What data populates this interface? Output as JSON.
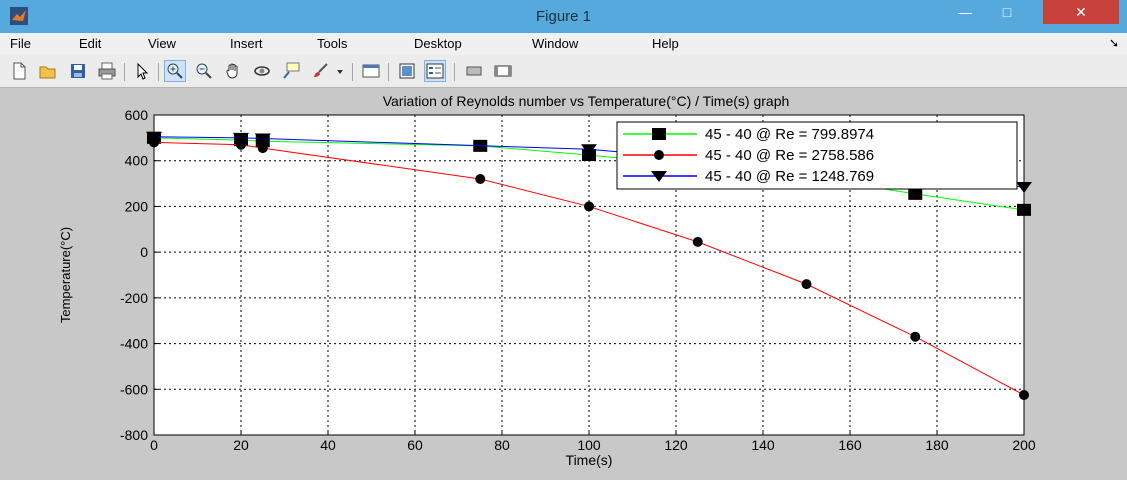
{
  "window": {
    "title": "Figure 1",
    "minimize_symbol": "—",
    "maximize_symbol": "□",
    "close_symbol": "✕"
  },
  "menu": [
    {
      "label": "File"
    },
    {
      "label": "Edit"
    },
    {
      "label": "View"
    },
    {
      "label": "Insert"
    },
    {
      "label": "Tools"
    },
    {
      "label": "Desktop"
    },
    {
      "label": "Window"
    },
    {
      "label": "Help"
    }
  ],
  "toolbar": [
    {
      "icon": "new-figure-icon"
    },
    {
      "icon": "open-file-icon"
    },
    {
      "icon": "save-icon"
    },
    {
      "icon": "print-icon"
    },
    {
      "icon": "edit-plot-arrow-icon"
    },
    {
      "icon": "zoom-in-icon",
      "active": true
    },
    {
      "icon": "zoom-out-icon"
    },
    {
      "icon": "pan-hand-icon"
    },
    {
      "icon": "rotate-3d-icon"
    },
    {
      "icon": "data-cursor-icon"
    },
    {
      "icon": "brush-icon"
    },
    {
      "icon": "brush-dropdown-icon"
    },
    {
      "icon": "link-plot-icon"
    },
    {
      "icon": "colorbar-icon"
    },
    {
      "icon": "legend-icon",
      "active": true
    },
    {
      "icon": "hide-plot-tools-icon"
    },
    {
      "icon": "show-plot-tools-icon"
    }
  ],
  "chart_data": {
    "type": "line",
    "title": "Variation of Reynolds number vs Temperature(°C) / Time(s) graph",
    "xlabel": "Time(s)",
    "ylabel": "Temperature(°C)",
    "xlim": [
      0,
      200
    ],
    "ylim": [
      -800,
      600
    ],
    "xticks": [
      0,
      20,
      40,
      60,
      80,
      100,
      120,
      140,
      160,
      180,
      200
    ],
    "yticks": [
      -800,
      -600,
      -400,
      -200,
      0,
      200,
      400,
      600
    ],
    "grid": true,
    "legend_position": "top-right",
    "series": [
      {
        "name": "45 - 40 @ Re = 799.8974",
        "color": "#00ff00",
        "marker": "square",
        "x": [
          0,
          20,
          25,
          75,
          100,
          150,
          175,
          200
        ],
        "y": [
          500,
          490,
          485,
          465,
          425,
          330,
          255,
          185
        ]
      },
      {
        "name": "45 - 40 @ Re = 2758.586",
        "color": "#ff0000",
        "marker": "circle",
        "x": [
          0,
          20,
          25,
          75,
          100,
          125,
          150,
          175,
          200
        ],
        "y": [
          480,
          470,
          455,
          320,
          200,
          45,
          -140,
          -370,
          -625
        ]
      },
      {
        "name": "45 - 40 @ Re = 1248.769",
        "color": "#0000ff",
        "marker": "triangle-down",
        "x": [
          0,
          20,
          25,
          100,
          200
        ],
        "y": [
          505,
          500,
          497,
          450,
          285
        ]
      }
    ]
  }
}
